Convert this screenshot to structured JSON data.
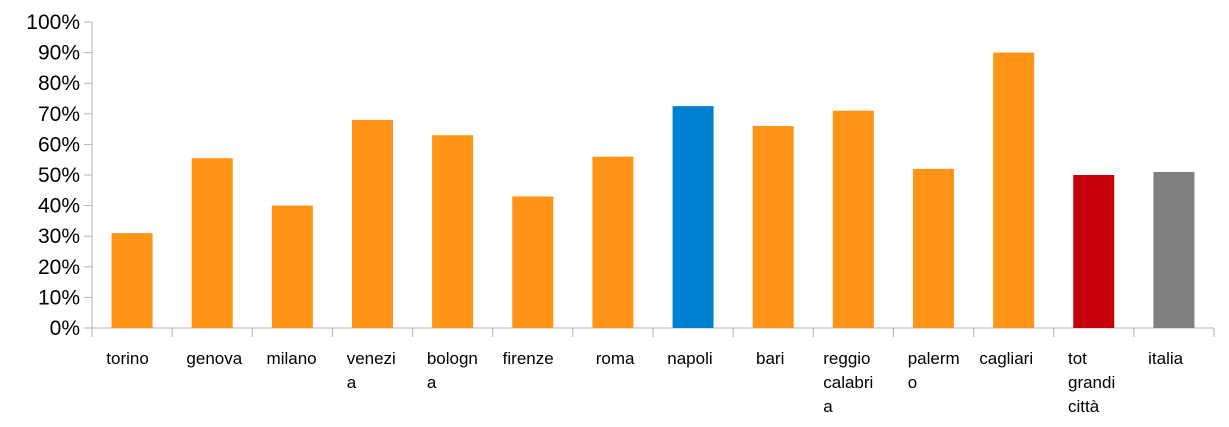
{
  "chart_data": {
    "type": "bar",
    "categories": [
      [
        "torino"
      ],
      [
        "genova"
      ],
      [
        "milano"
      ],
      [
        "venezi",
        "a"
      ],
      [
        "bologn",
        "a"
      ],
      [
        "firenze"
      ],
      [
        "roma"
      ],
      [
        "napoli"
      ],
      [
        "bari"
      ],
      [
        "reggio",
        "calabri",
        "a"
      ],
      [
        "palerm",
        "o"
      ],
      [
        "cagliari"
      ],
      [
        "tot",
        "grandi",
        "città"
      ],
      [
        "italia"
      ]
    ],
    "values": [
      31,
      55.5,
      40,
      68,
      63,
      43,
      56,
      72.5,
      66,
      71,
      52,
      90,
      50,
      51
    ],
    "colors": [
      "#ff9416",
      "#ff9416",
      "#ff9416",
      "#ff9416",
      "#ff9416",
      "#ff9416",
      "#ff9416",
      "#0080d0",
      "#ff9416",
      "#ff9416",
      "#ff9416",
      "#ff9416",
      "#c5000b",
      "#808080"
    ],
    "ylim": [
      0,
      100
    ],
    "yticks": [
      0,
      10,
      20,
      30,
      40,
      50,
      60,
      70,
      80,
      90,
      100
    ],
    "ytick_suffix": "%",
    "grid": false,
    "legend": "none",
    "title": "",
    "xlabel": "",
    "ylabel": ""
  }
}
